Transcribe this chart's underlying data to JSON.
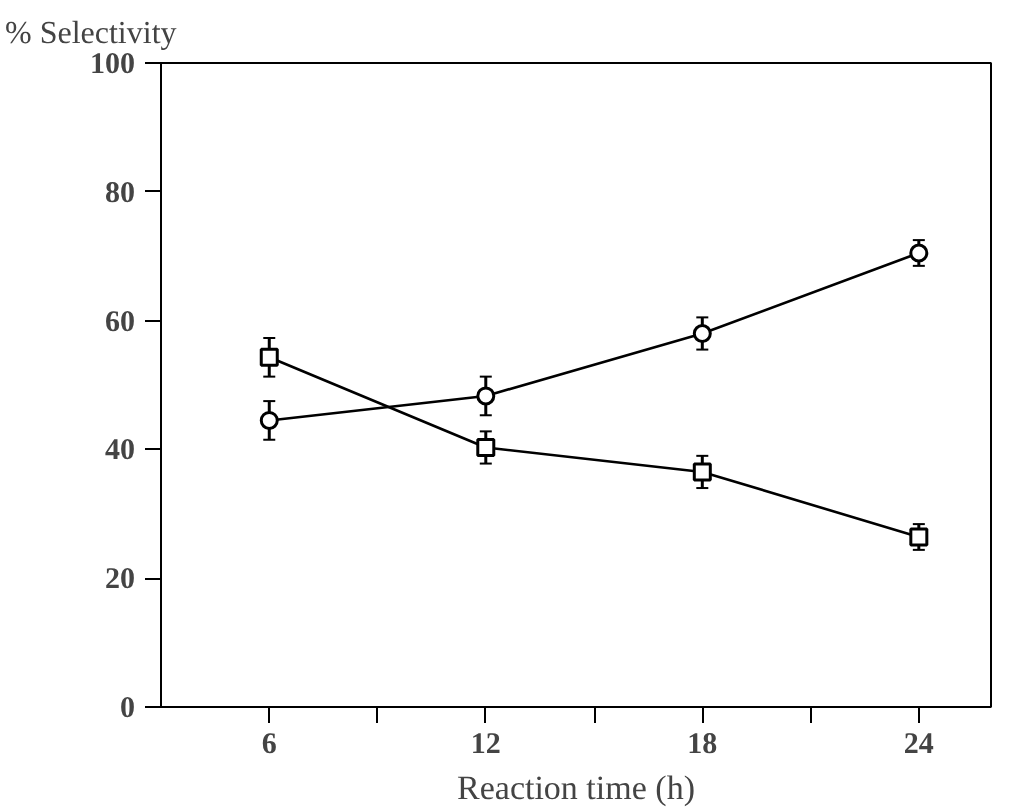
{
  "chart_data": {
    "type": "line",
    "ylabel": "% Selectivity",
    "xlabel": "Reaction time (h)",
    "x": [
      6,
      12,
      18,
      24
    ],
    "series": [
      {
        "color": "#000000",
        "marker": "circle",
        "values": [
          44.5,
          48.3,
          58,
          70.5
        ],
        "errors": [
          3,
          3,
          2.5,
          2
        ]
      },
      {
        "color": "#000000",
        "marker": "square",
        "values": [
          54.3,
          40.3,
          36.5,
          26.4
        ],
        "errors": [
          3,
          2.5,
          2.5,
          2
        ]
      }
    ],
    "xlim": [
      3,
      26
    ],
    "ylim": [
      0,
      100
    ],
    "xticks": [
      6,
      {
        "value": 9,
        "label": null
      },
      12,
      {
        "value": 15,
        "label": null
      },
      18,
      {
        "value": 21,
        "label": null
      },
      24
    ],
    "yticks": [
      0,
      20,
      40,
      60,
      80,
      100
    ],
    "grid": false,
    "line_style": "solid"
  }
}
